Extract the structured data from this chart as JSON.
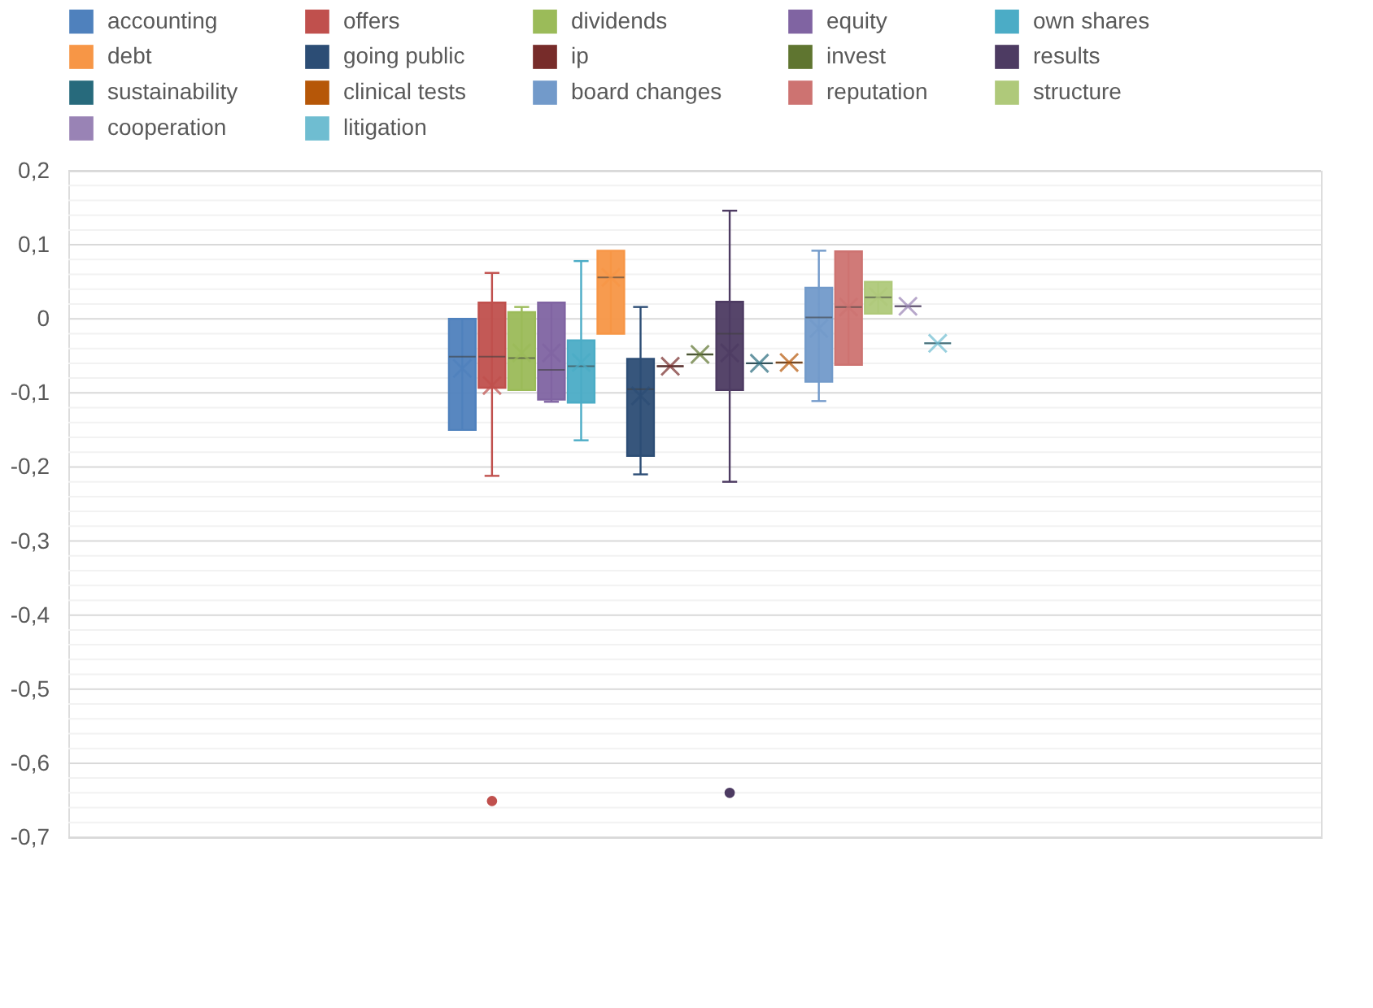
{
  "chart_data": {
    "type": "box",
    "categories": [
      null
    ],
    "ylim": [
      -0.7,
      0.2
    ],
    "grid": "y",
    "legend": "top",
    "tick_labels": "y",
    "yticks": [
      {
        "value": 0.2,
        "label": "0,2"
      },
      {
        "value": 0.18,
        "label": null
      },
      {
        "value": 0.16,
        "label": null
      },
      {
        "value": 0.14,
        "label": null
      },
      {
        "value": 0.12,
        "label": null
      },
      {
        "value": 0.1,
        "label": "0,1"
      },
      {
        "value": 0.08,
        "label": null
      },
      {
        "value": 0.06,
        "label": null
      },
      {
        "value": 0.04,
        "label": null
      },
      {
        "value": 0.02,
        "label": null
      },
      0,
      {
        "value": -0.02,
        "label": null
      },
      {
        "value": -0.04,
        "label": null
      },
      {
        "value": -0.06,
        "label": null
      },
      {
        "value": -0.08,
        "label": null
      },
      {
        "value": -0.1,
        "label": "-0,1"
      },
      {
        "value": -0.12,
        "label": null
      },
      {
        "value": -0.14,
        "label": null
      },
      {
        "value": -0.16,
        "label": null
      },
      {
        "value": -0.18,
        "label": null
      },
      {
        "value": -0.2,
        "label": "-0,2"
      },
      {
        "value": -0.22,
        "label": null
      },
      {
        "value": -0.24,
        "label": null
      },
      {
        "value": -0.26,
        "label": null
      },
      {
        "value": -0.28,
        "label": null
      },
      {
        "value": -0.3,
        "label": "-0,3"
      },
      {
        "value": -0.32,
        "label": null
      },
      {
        "value": -0.34,
        "label": null
      },
      {
        "value": -0.36,
        "label": null
      },
      {
        "value": -0.38,
        "label": null
      },
      {
        "value": -0.4,
        "label": "-0,4"
      },
      {
        "value": -0.42,
        "label": null
      },
      {
        "value": -0.44,
        "label": null
      },
      {
        "value": -0.46,
        "label": null
      },
      {
        "value": -0.48,
        "label": null
      },
      {
        "value": -0.5,
        "label": "-0,5"
      },
      {
        "value": -0.52,
        "label": null
      },
      {
        "value": -0.54,
        "label": null
      },
      {
        "value": -0.56,
        "label": null
      },
      {
        "value": -0.58,
        "label": null
      },
      {
        "value": -0.6,
        "label": "-0,6"
      },
      {
        "value": -0.62,
        "label": null
      },
      {
        "value": -0.64,
        "label": null
      },
      {
        "value": -0.66,
        "label": null
      },
      {
        "value": -0.68,
        "label": null
      },
      {
        "value": -0.7,
        "label": "-0,7"
      }
    ],
    "series": [
      {
        "name": "accounting",
        "color": "#4f81bd",
        "boxes": [
          {
            "low": -0.15,
            "q1": -0.15,
            "median": -0.051,
            "q3": 0.0,
            "high": 0.0,
            "mean": -0.067
          }
        ]
      },
      {
        "name": "offers",
        "color": "#c0504d",
        "boxes": [
          {
            "low": -0.212,
            "q1": -0.093,
            "median": -0.051,
            "q3": 0.022,
            "high": 0.062,
            "mean": -0.09,
            "outliers": [
              -0.651
            ]
          }
        ]
      },
      {
        "name": "dividends",
        "color": "#9bbb59",
        "boxes": [
          {
            "low": -0.096,
            "q1": -0.096,
            "median": -0.053,
            "q3": 0.009,
            "high": 0.016,
            "mean": -0.046
          }
        ]
      },
      {
        "name": "equity",
        "color": "#8064a2",
        "boxes": [
          {
            "low": -0.112,
            "q1": -0.109,
            "median": -0.069,
            "q3": 0.022,
            "high": 0.022,
            "mean": -0.046
          }
        ]
      },
      {
        "name": "own shares",
        "color": "#4bacc6",
        "boxes": [
          {
            "low": -0.164,
            "q1": -0.113,
            "median": -0.064,
            "q3": -0.029,
            "high": 0.078,
            "mean": -0.059
          }
        ]
      },
      {
        "name": "debt",
        "color": "#f79646",
        "boxes": [
          {
            "low": -0.02,
            "q1": -0.02,
            "median": 0.056,
            "q3": 0.092,
            "high": 0.092,
            "mean": 0.056
          }
        ]
      },
      {
        "name": "going public",
        "color": "#2c4d75",
        "boxes": [
          {
            "low": -0.21,
            "q1": -0.185,
            "median": -0.095,
            "q3": -0.054,
            "high": 0.016,
            "mean": -0.104
          }
        ]
      },
      {
        "name": "ip",
        "color": "#772c2a",
        "boxes": [
          {
            "low": -0.064,
            "q1": -0.064,
            "median": -0.064,
            "q3": -0.064,
            "high": -0.064,
            "mean": -0.064
          }
        ]
      },
      {
        "name": "invest",
        "color": "#5f7530",
        "boxes": [
          {
            "low": -0.048,
            "q1": -0.048,
            "median": -0.048,
            "q3": -0.048,
            "high": -0.048,
            "mean": -0.048
          }
        ]
      },
      {
        "name": "results",
        "color": "#4d3b62",
        "boxes": [
          {
            "low": -0.22,
            "q1": -0.096,
            "median": -0.02,
            "q3": 0.023,
            "high": 0.146,
            "mean": -0.046,
            "outliers": [
              -0.64
            ]
          }
        ]
      },
      {
        "name": "sustainability",
        "color": "#276a7c",
        "boxes": [
          {
            "low": -0.06,
            "q1": -0.06,
            "median": -0.06,
            "q3": -0.06,
            "high": -0.06,
            "mean": -0.06
          }
        ]
      },
      {
        "name": "clinical tests",
        "color": "#b65708",
        "boxes": [
          {
            "low": -0.059,
            "q1": -0.059,
            "median": -0.059,
            "q3": -0.059,
            "high": -0.059,
            "mean": -0.059
          }
        ]
      },
      {
        "name": "board changes",
        "color": "#729aca",
        "boxes": [
          {
            "low": -0.111,
            "q1": -0.085,
            "median": 0.002,
            "q3": 0.042,
            "high": 0.092,
            "mean": -0.013
          }
        ]
      },
      {
        "name": "reputation",
        "color": "#cd7371",
        "boxes": [
          {
            "low": -0.062,
            "q1": -0.062,
            "median": 0.016,
            "q3": 0.091,
            "high": 0.091,
            "mean": 0.016
          }
        ]
      },
      {
        "name": "structure",
        "color": "#afc97a",
        "boxes": [
          {
            "low": 0.007,
            "q1": 0.007,
            "median": 0.029,
            "q3": 0.05,
            "high": 0.05,
            "mean": 0.03
          }
        ]
      },
      {
        "name": "cooperation",
        "color": "#9983b5",
        "boxes": [
          {
            "low": 0.017,
            "q1": 0.017,
            "median": 0.017,
            "q3": 0.017,
            "high": 0.017,
            "mean": 0.017
          }
        ]
      },
      {
        "name": "litigation",
        "color": "#6fbdd1",
        "boxes": [
          {
            "low": -0.033,
            "q1": -0.033,
            "median": -0.033,
            "q3": -0.033,
            "high": -0.033,
            "mean": -0.033
          }
        ]
      }
    ]
  }
}
